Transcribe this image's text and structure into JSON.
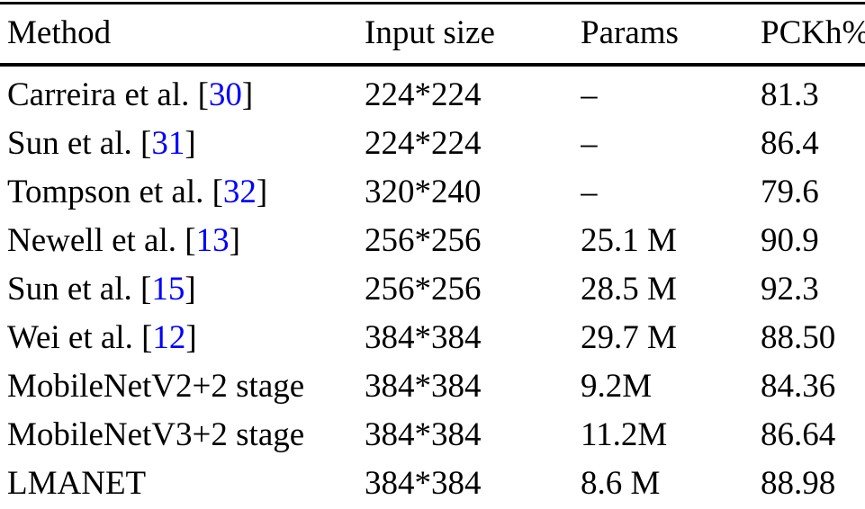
{
  "table": {
    "headers": [
      {
        "id": "method",
        "label": "Method"
      },
      {
        "id": "input_size",
        "label": "Input size"
      },
      {
        "id": "params",
        "label": "Params"
      },
      {
        "id": "pckh",
        "label": "PCKh%"
      }
    ],
    "rows": [
      {
        "method": "Carreira et al.",
        "citation": "30",
        "input_size": "224*224",
        "params": "–",
        "pckh": "81.3"
      },
      {
        "method": "Sun et al.",
        "citation": "31",
        "input_size": "224*224",
        "params": "–",
        "pckh": "86.4"
      },
      {
        "method": "Tompson et al.",
        "citation": "32",
        "input_size": "320*240",
        "params": "–",
        "pckh": "79.6"
      },
      {
        "method": "Newell et al.",
        "citation": "13",
        "input_size": "256*256",
        "params": "25.1 M",
        "pckh": "90.9"
      },
      {
        "method": "Sun et al.",
        "citation": "15",
        "input_size": "256*256",
        "params": "28.5 M",
        "pckh": "92.3"
      },
      {
        "method": "Wei et al.",
        "citation": "12",
        "input_size": "384*384",
        "params": "29.7 M",
        "pckh": "88.50"
      },
      {
        "method": "MobileNetV2+2 stage",
        "citation": null,
        "input_size": "384*384",
        "params": "9.2M",
        "pckh": "84.36"
      },
      {
        "method": "MobileNetV3+2 stage",
        "citation": null,
        "input_size": "384*384",
        "params": "11.2M",
        "pckh": "86.64"
      },
      {
        "method": "LMANET",
        "citation": null,
        "input_size": "384*384",
        "params": "8.6 M",
        "pckh": "88.98"
      }
    ]
  },
  "colors": {
    "citation_link": "#0000fe",
    "text": "#000000",
    "rule": "#000000",
    "background": "#ffffff"
  }
}
